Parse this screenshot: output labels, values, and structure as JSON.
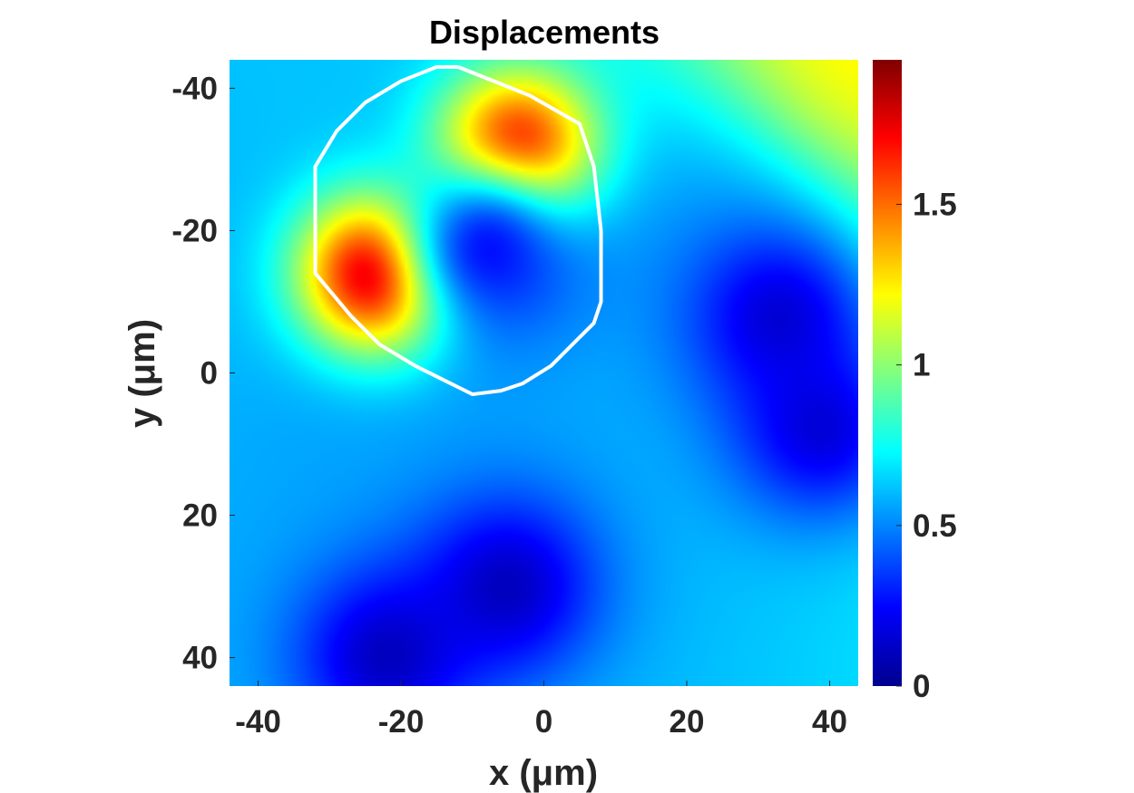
{
  "chart_data": {
    "type": "heatmap",
    "title": "Displacements",
    "xlabel": "x (μm)",
    "ylabel": "y (μm)",
    "xlim": [
      -44,
      44
    ],
    "ylim": [
      -44,
      44
    ],
    "y_reversed": true,
    "x_ticks": [
      -40,
      -20,
      0,
      20,
      40
    ],
    "x_tick_labels": [
      "-40",
      "-20",
      "0",
      "20",
      "40"
    ],
    "y_ticks": [
      -40,
      -20,
      0,
      20,
      40
    ],
    "y_tick_labels": [
      "-40",
      "-20",
      "0",
      "20",
      "40"
    ],
    "colormap": "jet",
    "clim": [
      0,
      1.95
    ],
    "colorbar_ticks": [
      0,
      0.5,
      1,
      1.5
    ],
    "colorbar_tick_labels": [
      "0",
      "0.5",
      "1",
      "1.5"
    ],
    "grid": false,
    "field": {
      "background": [
        {
          "x": -30,
          "y": -36,
          "value": 0.62
        },
        {
          "x": 44,
          "y": -44,
          "value": 1.3
        },
        {
          "x": 24,
          "y": -22,
          "value": 0.5
        },
        {
          "x": -20,
          "y": 6,
          "value": 0.55
        },
        {
          "x": -44,
          "y": -20,
          "value": 0.6
        }
      ],
      "peaks": [
        {
          "x": -23,
          "y": -14,
          "value": 1.95
        },
        {
          "x": -4,
          "y": -31,
          "value": 1.85
        }
      ],
      "minima": [
        {
          "x": -8,
          "y": -18,
          "value": 0.15
        },
        {
          "x": 33,
          "y": -8,
          "value": 0.1
        },
        {
          "x": 39,
          "y": 8,
          "value": 0.1
        },
        {
          "x": -22,
          "y": 40,
          "value": 0.05
        },
        {
          "x": -5,
          "y": 30,
          "value": 0.05
        }
      ]
    },
    "overlay": {
      "type": "cell-outline",
      "color": "#ffffff",
      "points": [
        [
          -12,
          -43
        ],
        [
          -2,
          -39
        ],
        [
          5,
          -35
        ],
        [
          7,
          -29
        ],
        [
          8,
          -20
        ],
        [
          8,
          -10
        ],
        [
          7,
          -7
        ],
        [
          4,
          -4
        ],
        [
          1,
          -1
        ],
        [
          -3,
          1.5
        ],
        [
          -6,
          2.5
        ],
        [
          -10,
          3
        ],
        [
          -13,
          1.5
        ],
        [
          -18,
          -1
        ],
        [
          -23,
          -4
        ],
        [
          -27,
          -8
        ],
        [
          -32,
          -14
        ],
        [
          -32,
          -23
        ],
        [
          -32,
          -29
        ],
        [
          -29,
          -34
        ],
        [
          -25,
          -38
        ],
        [
          -20,
          -41
        ],
        [
          -15,
          -43
        ]
      ]
    }
  }
}
